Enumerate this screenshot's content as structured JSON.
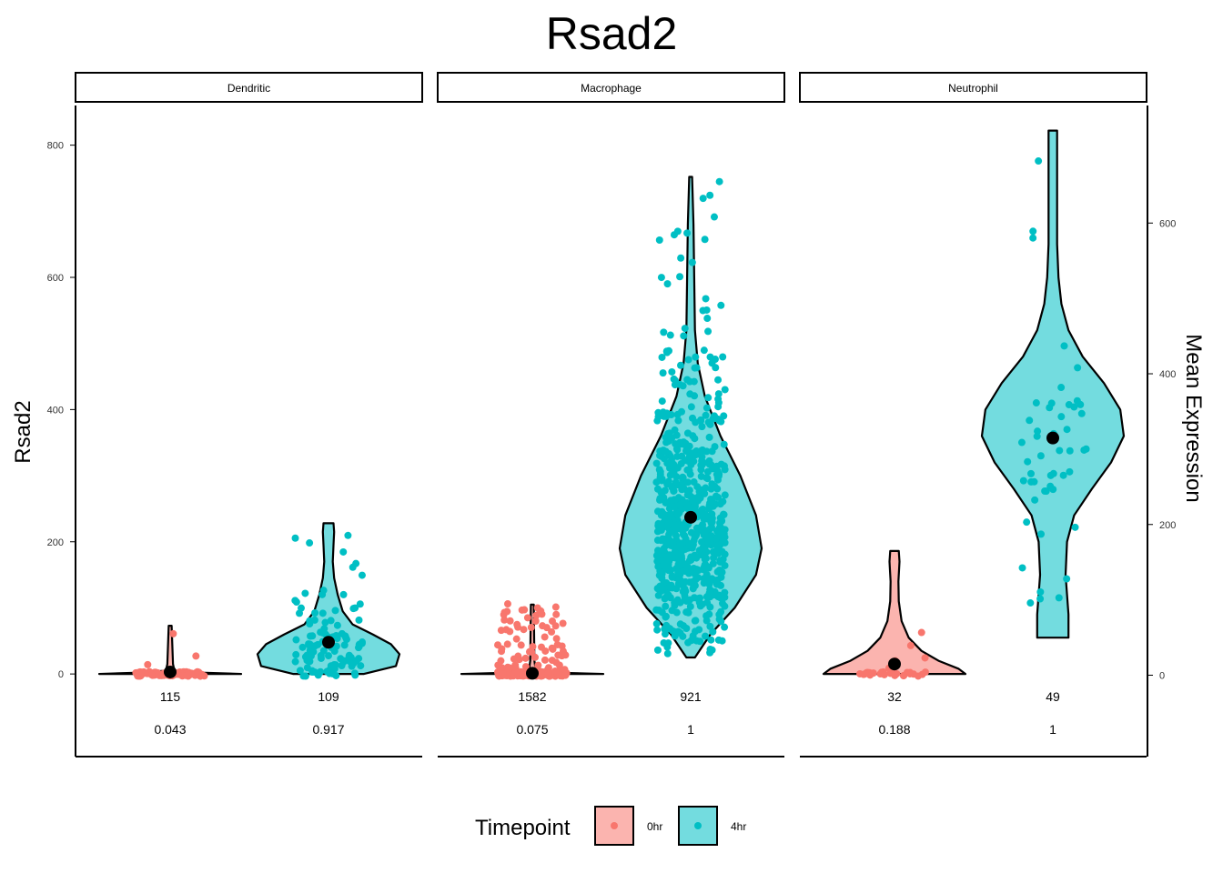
{
  "chart_data": {
    "type": "violin",
    "title": "Rsad2",
    "ylabel": "Rsad2",
    "ylabel_right": "Mean Expression",
    "ylim": [
      -125,
      860
    ],
    "yticks": [
      0,
      200,
      400,
      600,
      800
    ],
    "ylim_right": [
      -108,
      756
    ],
    "yticks_right": [
      0,
      200,
      400,
      600
    ],
    "colors": {
      "0hr": "#F8766D",
      "4hr": "#00BFC4"
    },
    "legend": {
      "title": "Timepoint",
      "position": "bottom",
      "entries": [
        {
          "label": "0hr",
          "color": "#F8766D"
        },
        {
          "label": "4hr",
          "color": "#00BFC4"
        }
      ]
    },
    "panels": [
      {
        "label": "Dendritic",
        "groups": [
          {
            "timepoint": "0hr",
            "n_cells": "115",
            "fraction_expressing": "0.043",
            "mean_expression": 3,
            "max": 73
          },
          {
            "timepoint": "4hr",
            "n_cells": "109",
            "fraction_expressing": "0.917",
            "mean_expression": 48,
            "max": 228
          }
        ]
      },
      {
        "label": "Macrophage",
        "groups": [
          {
            "timepoint": "0hr",
            "n_cells": "1582",
            "fraction_expressing": "0.075",
            "mean_expression": 1,
            "max": 105
          },
          {
            "timepoint": "4hr",
            "n_cells": "921",
            "fraction_expressing": "1",
            "mean_expression": 237,
            "max": 752
          }
        ]
      },
      {
        "label": "Neutrophil",
        "groups": [
          {
            "timepoint": "0hr",
            "n_cells": "32",
            "fraction_expressing": "0.188",
            "mean_expression": 15,
            "max": 186
          },
          {
            "timepoint": "4hr",
            "n_cells": "49",
            "fraction_expressing": "1",
            "mean_expression": 357,
            "max": 822
          }
        ]
      }
    ]
  }
}
